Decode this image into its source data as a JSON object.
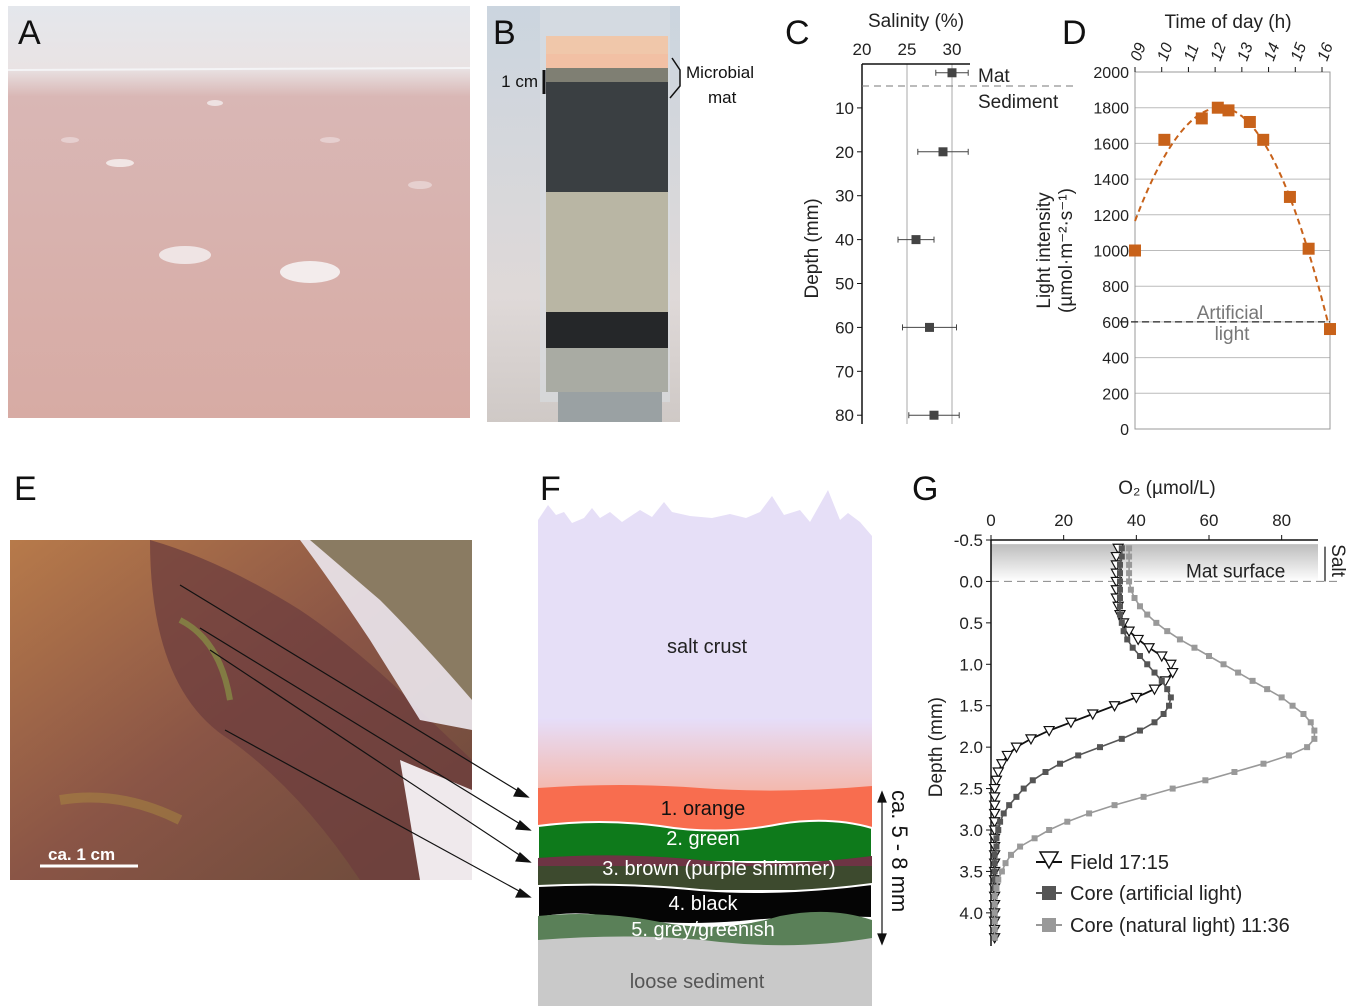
{
  "panels": {
    "A": "A",
    "B": "B",
    "C": "C",
    "D": "D",
    "E": "E",
    "F": "F",
    "G": "G"
  },
  "panel_b": {
    "scale_label": "1 cm",
    "annotation_line1": "Microbial",
    "annotation_line2": "mat"
  },
  "panel_e": {
    "scale_label": "ca. 1 cm"
  },
  "panel_f": {
    "salt_crust": "salt crust",
    "layers": [
      "1. orange",
      "2. green",
      "3. brown (purple shimmer)",
      "4. black",
      "5. grey/greenish"
    ],
    "loose_sediment": "loose sediment",
    "thickness_label": "ca. 5 - 8 mm"
  },
  "chart_data": [
    {
      "id": "C",
      "type": "scatter",
      "xlabel": "Salinity (%)",
      "ylabel": "Depth (mm)",
      "xlim": [
        20,
        32
      ],
      "ylim": [
        0,
        82
      ],
      "xticks": [
        20,
        25,
        30
      ],
      "yticks": [
        10,
        20,
        30,
        40,
        50,
        60,
        70,
        80
      ],
      "points": [
        {
          "depth": 2,
          "salinity": 30,
          "err": 1.8
        },
        {
          "depth": 20,
          "salinity": 29,
          "err": 2.8
        },
        {
          "depth": 40,
          "salinity": 26,
          "err": 2.0
        },
        {
          "depth": 60,
          "salinity": 27.5,
          "err": 3.0
        },
        {
          "depth": 80,
          "salinity": 28,
          "err": 2.8
        }
      ],
      "boundary_depth": 5,
      "annotations": [
        "Mat",
        "Sediment"
      ],
      "grid": "vertical"
    },
    {
      "id": "D",
      "type": "scatter",
      "xlabel": "Time of day (h)",
      "ylabel": "Light intensity",
      "ylabel_units": "(µmol·m⁻²·s⁻¹)",
      "xlim": [
        9,
        16.3
      ],
      "ylim": [
        0,
        2000
      ],
      "xticks": [
        "09",
        "10",
        "11",
        "12",
        "13",
        "14",
        "15",
        "16"
      ],
      "yticks": [
        0,
        200,
        400,
        600,
        800,
        1000,
        1200,
        1400,
        1600,
        1800,
        2000
      ],
      "x": [
        9,
        10.1,
        11.5,
        12.1,
        12.5,
        13.3,
        13.8,
        14.8,
        15.5,
        16.3
      ],
      "y": [
        1000,
        1620,
        1740,
        1800,
        1785,
        1720,
        1620,
        1300,
        1010,
        560
      ],
      "fit": "quadratic dashed",
      "reference_line": {
        "value": 600,
        "label_line1": "Artificial",
        "label_line2": "light"
      },
      "grid": "horizontal",
      "color": "#c8621a"
    },
    {
      "id": "G",
      "type": "line",
      "xlabel": "O₂ (µmol/L)",
      "ylabel": "Depth (mm)",
      "xlim": [
        0,
        90
      ],
      "ylim": [
        -0.5,
        4.4
      ],
      "xticks": [
        0,
        20,
        40,
        60,
        80
      ],
      "yticks": [
        -0.5,
        0.0,
        0.5,
        1.0,
        1.5,
        2.0,
        2.5,
        3.0,
        3.5,
        4.0
      ],
      "ytick_labels": [
        "-0.5",
        "0.0",
        "0.5",
        "1.0",
        "1.5",
        "2.0",
        "2.5",
        "3.0",
        "3.5",
        "4.0"
      ],
      "surface_label": "Mat surface",
      "salt_label": "Salt",
      "series": [
        {
          "name": "Field 17:15",
          "marker": "triangle-down",
          "color": "#111111",
          "depth": [
            -0.4,
            -0.3,
            -0.2,
            -0.1,
            0.0,
            0.1,
            0.2,
            0.3,
            0.4,
            0.5,
            0.6,
            0.7,
            0.8,
            0.9,
            1.0,
            1.1,
            1.2,
            1.3,
            1.4,
            1.5,
            1.6,
            1.7,
            1.8,
            1.9,
            2.0,
            2.1,
            2.2,
            2.3,
            2.4,
            2.5,
            2.6,
            2.7,
            2.8,
            2.9,
            3.0,
            3.1,
            3.2,
            3.3,
            3.4,
            3.5,
            3.6,
            3.7,
            3.8,
            3.9,
            4.0,
            4.1,
            4.2,
            4.3
          ],
          "o2": [
            35,
            34.5,
            34.5,
            34.5,
            34.5,
            34.5,
            34.5,
            35,
            35.5,
            36.5,
            38,
            40.5,
            43.5,
            47,
            49.5,
            50,
            48,
            45,
            40,
            34,
            28,
            22,
            16,
            11,
            7,
            4.5,
            3,
            2,
            1.5,
            1,
            1,
            1,
            1,
            1,
            1,
            1,
            1,
            1,
            1,
            1,
            1,
            1,
            1,
            1,
            1,
            1,
            1,
            1
          ]
        },
        {
          "name": "Core (artificial light)",
          "marker": "square",
          "color": "#555555",
          "depth": [
            -0.4,
            -0.3,
            -0.2,
            -0.1,
            0.0,
            0.1,
            0.2,
            0.3,
            0.4,
            0.5,
            0.6,
            0.7,
            0.8,
            0.9,
            1.0,
            1.1,
            1.2,
            1.3,
            1.4,
            1.5,
            1.6,
            1.7,
            1.8,
            1.9,
            2.0,
            2.1,
            2.2,
            2.3,
            2.4,
            2.5,
            2.6,
            2.7,
            2.8,
            2.9,
            3.0,
            3.1,
            3.2,
            3.3,
            3.4,
            3.5,
            3.6,
            3.7,
            3.8,
            3.9,
            4.0,
            4.1,
            4.2,
            4.3
          ],
          "o2": [
            36,
            36,
            35.5,
            35.5,
            35.5,
            35.5,
            35.5,
            35.5,
            35.5,
            36,
            36.5,
            37.5,
            39,
            41,
            43,
            45,
            47,
            48.5,
            49.5,
            49,
            47.5,
            45,
            41,
            36,
            30,
            24,
            19,
            15,
            11.5,
            9,
            7,
            5,
            3.5,
            2.5,
            2,
            1.5,
            1.5,
            1,
            1,
            1,
            1,
            1,
            1,
            1,
            1,
            1,
            1,
            1
          ]
        },
        {
          "name": "Core (natural light) 11:36",
          "marker": "square",
          "color": "#999999",
          "depth": [
            -0.4,
            -0.3,
            -0.2,
            -0.1,
            0.0,
            0.1,
            0.2,
            0.3,
            0.4,
            0.5,
            0.6,
            0.7,
            0.8,
            0.9,
            1.0,
            1.1,
            1.2,
            1.3,
            1.4,
            1.5,
            1.6,
            1.7,
            1.8,
            1.9,
            2.0,
            2.1,
            2.2,
            2.3,
            2.4,
            2.5,
            2.6,
            2.7,
            2.8,
            2.9,
            3.0,
            3.1,
            3.2,
            3.3,
            3.4,
            3.5,
            3.6,
            3.7,
            3.8,
            3.9,
            4.0,
            4.1,
            4.2,
            4.3
          ],
          "o2": [
            38,
            38,
            38,
            38,
            38,
            38.5,
            39.5,
            41,
            43,
            45.5,
            48.5,
            52,
            56,
            60,
            64,
            68,
            72,
            76,
            80,
            83,
            86,
            88,
            89,
            89,
            87,
            82,
            75,
            67,
            59,
            50,
            42,
            34,
            27,
            21,
            16,
            12,
            8,
            5.5,
            4,
            3,
            2,
            1.5,
            1,
            1,
            1,
            1,
            1,
            1
          ]
        }
      ],
      "grid": "none"
    }
  ]
}
